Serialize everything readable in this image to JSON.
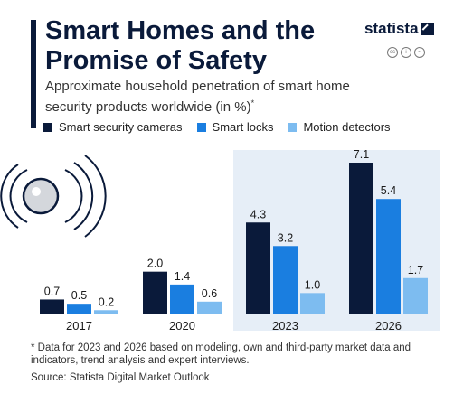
{
  "title": "Smart Homes and the Promise of Safety",
  "subtitle": "Approximate household penetration of smart home security products worldwide (in %)",
  "subtitle_mark": "*",
  "brand": "statista",
  "license_icons": [
    "cc",
    "i",
    "="
  ],
  "footnote": "* Data for 2023 and 2026 based on modeling, own and third-party market data and indicators, trend analysis and expert interviews.",
  "source": "Source: Statista Digital Market Outlook",
  "colors": {
    "accent": "#0a1a3a",
    "series": [
      "#0a1a3a",
      "#1a7ee0",
      "#7dbcf0"
    ],
    "forecast_bg": "#e6eef7"
  },
  "chart_data": {
    "type": "bar",
    "categories": [
      "2017",
      "2020",
      "2023",
      "2026"
    ],
    "forecast_categories": [
      "2023",
      "2026"
    ],
    "series": [
      {
        "name": "Smart security cameras",
        "values": [
          0.7,
          2.0,
          4.3,
          7.1
        ]
      },
      {
        "name": "Smart locks",
        "values": [
          0.5,
          1.4,
          3.2,
          5.4
        ]
      },
      {
        "name": "Motion detectors",
        "values": [
          0.2,
          0.6,
          1.0,
          1.7
        ]
      }
    ],
    "value_labels": [
      [
        "0.7",
        "2.0",
        "4.3",
        "7.1"
      ],
      [
        "0.5",
        "1.4",
        "3.2",
        "5.4"
      ],
      [
        "0.2",
        "0.6",
        "1.0",
        "1.7"
      ]
    ],
    "ylim": [
      0,
      7.1
    ],
    "grid": false,
    "legend": "top"
  }
}
